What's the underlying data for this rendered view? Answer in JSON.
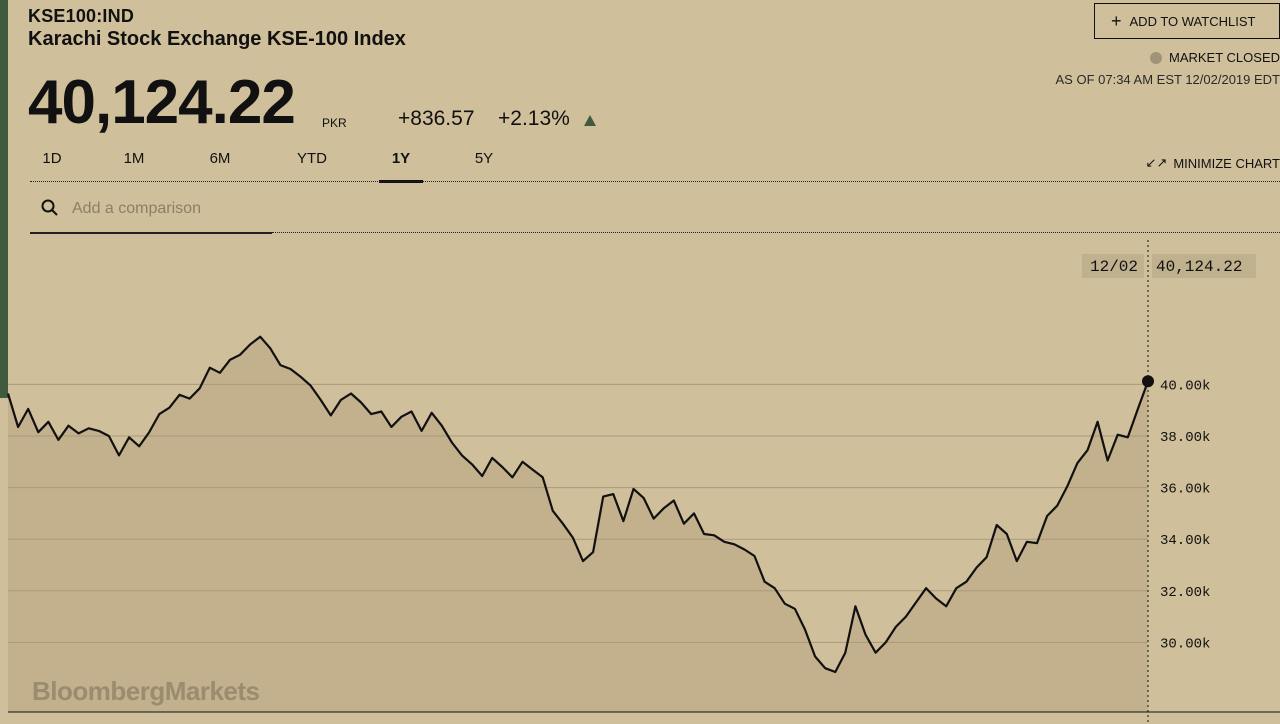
{
  "header": {
    "ticker": "KSE100:IND",
    "name": "Karachi Stock Exchange KSE-100 Index",
    "price": "40,124.22",
    "currency": "PKR",
    "change": "+836.57",
    "change_pct": "+2.13%",
    "direction_icon": "up-triangle-icon"
  },
  "actions": {
    "watchlist_label": "ADD TO WATCHLIST",
    "market_status": "MARKET CLOSED",
    "as_of": "AS OF 07:34 AM EST 12/02/2019 EDT",
    "minimize_label": "MINIMIZE CHART"
  },
  "tabs": [
    {
      "label": "1D"
    },
    {
      "label": "1M"
    },
    {
      "label": "6M"
    },
    {
      "label": "YTD"
    },
    {
      "label": "1Y",
      "active": true
    },
    {
      "label": "5Y"
    }
  ],
  "search": {
    "placeholder": "Add a comparison"
  },
  "brand": "BloombergMarkets",
  "colors": {
    "background": "#d0bf9b",
    "fill": "#c3b08c",
    "line": "#111111",
    "accent": "#3f5a3c"
  },
  "chart_data": {
    "type": "area",
    "crosshair": {
      "date": "12/02",
      "value": "40,124.22"
    },
    "y_ticks": [
      30000,
      32000,
      34000,
      36000,
      38000,
      40000
    ],
    "y_tick_labels": [
      "30.00k",
      "32.00k",
      "34.00k",
      "36.00k",
      "38.00k",
      "40.00k"
    ],
    "ylim": [
      27300,
      45600
    ],
    "values": [
      39650,
      38350,
      39050,
      38150,
      38550,
      37850,
      38400,
      38100,
      38300,
      38200,
      38000,
      37250,
      37950,
      37600,
      38150,
      38850,
      39100,
      39600,
      39450,
      39850,
      40650,
      40450,
      40950,
      41150,
      41550,
      41850,
      41400,
      40750,
      40600,
      40300,
      39950,
      39400,
      38800,
      39400,
      39650,
      39300,
      38850,
      38950,
      38350,
      38750,
      38950,
      38200,
      38900,
      38400,
      37750,
      37250,
      36900,
      36450,
      37150,
      36800,
      36400,
      37000,
      36700,
      36400,
      35100,
      34600,
      34050,
      33150,
      33500,
      35650,
      35750,
      34700,
      35950,
      35600,
      34800,
      35200,
      35500,
      34600,
      35000,
      34200,
      34150,
      33900,
      33800,
      33600,
      33350,
      32350,
      32100,
      31500,
      31300,
      30500,
      29450,
      29000,
      28850,
      29600,
      31400,
      30300,
      29600,
      30000,
      30600,
      31000,
      31550,
      32100,
      31700,
      31400,
      32100,
      32350,
      32900,
      33300,
      34550,
      34200,
      33150,
      33900,
      33850,
      34900,
      35300,
      36050,
      36950,
      37450,
      38550,
      37050,
      38050,
      37950,
      39050,
      40124.22
    ]
  }
}
